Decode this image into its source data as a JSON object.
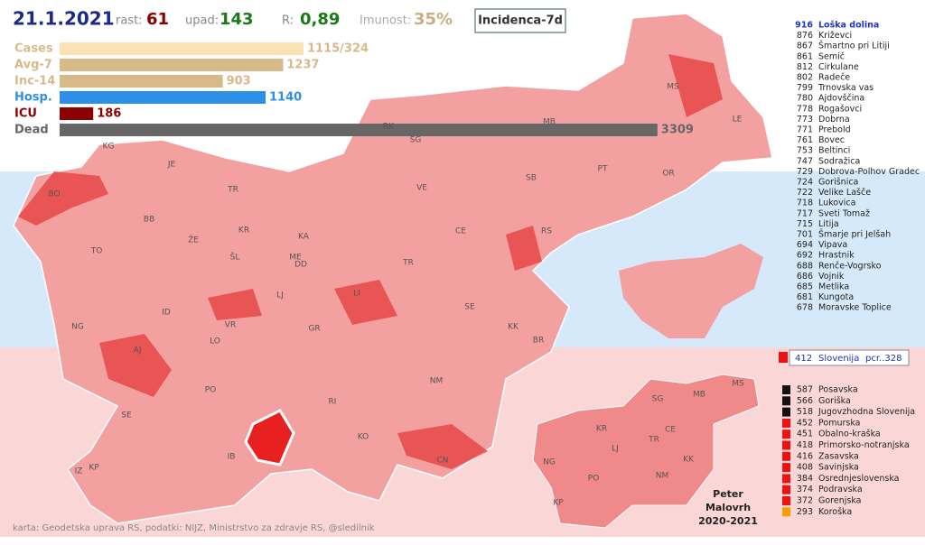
{
  "header": {
    "date": "21.1.2021",
    "rast_label": "rast:",
    "rast": "61",
    "upad_label": "upad:",
    "upad": "143",
    "r_label": "R:",
    "r": "0,89",
    "imunost_label": "Imunost:",
    "imunost": "35%",
    "button": "Incidenca-7d"
  },
  "stats": [
    {
      "label": "Cases",
      "value": "1115/324",
      "color": "#f9e3b4"
    },
    {
      "label": "Avg-7",
      "value": 1237,
      "color": "#d8b98a"
    },
    {
      "label": "Inc-14",
      "value": 903,
      "color": "#d8b98a"
    },
    {
      "label": "Hosp.",
      "value": 1140,
      "color": "#2e8fe8"
    },
    {
      "label": "ICU",
      "value": 186,
      "color": "#8b0000"
    },
    {
      "label": "Dead",
      "value": 3309,
      "color": "#666666"
    }
  ],
  "top_list": [
    [
      "916",
      "Loška dolina"
    ],
    [
      "876",
      "Križevci"
    ],
    [
      "867",
      "Šmartno pri Litiji"
    ],
    [
      "861",
      "Semič"
    ],
    [
      "812",
      "Cirkulane"
    ],
    [
      "802",
      "Radeče"
    ],
    [
      "799",
      "Trnovska vas"
    ],
    [
      "780",
      "Ajdovščina"
    ],
    [
      "778",
      "Rogašovci"
    ],
    [
      "773",
      "Dobrna"
    ],
    [
      "771",
      "Prebold"
    ],
    [
      "761",
      "Bovec"
    ],
    [
      "753",
      "Beltinci"
    ],
    [
      "747",
      "Sodražica"
    ],
    [
      "729",
      "Dobrova-Polhov Gradec"
    ],
    [
      "724",
      "Gorišnica"
    ],
    [
      "722",
      "Velike Lašče"
    ],
    [
      "718",
      "Lukovica"
    ],
    [
      "717",
      "Sveti Tomaž"
    ],
    [
      "715",
      "Litija"
    ],
    [
      "701",
      "Šmarje pri Jelšah"
    ],
    [
      "694",
      "Vipava"
    ],
    [
      "692",
      "Hrastnik"
    ],
    [
      "688",
      "Renče-Vogrsko"
    ],
    [
      "686",
      "Vojnik"
    ],
    [
      "685",
      "Metlika"
    ],
    [
      "681",
      "Kungota"
    ],
    [
      "678",
      "Moravske Toplice"
    ]
  ],
  "slovenia": {
    "value": "412",
    "name": "Slovenija",
    "pcr": "pcr..328"
  },
  "regions": [
    {
      "value": "587",
      "name": "Posavska",
      "color": "#111111"
    },
    {
      "value": "566",
      "name": "Goriška",
      "color": "#111111"
    },
    {
      "value": "518",
      "name": "Jugovzhodna Slovenija",
      "color": "#111111"
    },
    {
      "value": "452",
      "name": "Pomurska",
      "color": "#ee1111"
    },
    {
      "value": "451",
      "name": "Obalno-kraška",
      "color": "#ee1111"
    },
    {
      "value": "418",
      "name": "Primorsko-notranjska",
      "color": "#ee1111"
    },
    {
      "value": "416",
      "name": "Zasavska",
      "color": "#ee1111"
    },
    {
      "value": "408",
      "name": "Savinjska",
      "color": "#ee1111"
    },
    {
      "value": "384",
      "name": "Osrednjeslovenska",
      "color": "#ee1111"
    },
    {
      "value": "374",
      "name": "Podravska",
      "color": "#ee1111"
    },
    {
      "value": "372",
      "name": "Gorenjska",
      "color": "#ee1111"
    },
    {
      "value": "293",
      "name": "Koroška",
      "color": "#f5a000"
    }
  ],
  "map_labels": [
    "KG",
    "JE",
    "BO",
    "TR",
    "BB",
    "ŽE",
    "KR",
    "KA",
    "TO",
    "ŠL",
    "ME",
    "DD",
    "LJ",
    "TR",
    "ID",
    "VR",
    "GR",
    "NG",
    "AJ",
    "LO",
    "PO",
    "RI",
    "SE",
    "KO",
    "NM",
    "IB",
    "IZ",
    "KP",
    "CN",
    "LI",
    "SE",
    "KK",
    "BR",
    "RK",
    "SG",
    "MB",
    "VE",
    "SB",
    "CE",
    "RS",
    "PT",
    "MS",
    "LE",
    "OR"
  ],
  "small_map_labels": [
    "SG",
    "MB",
    "MS",
    "KR",
    "CE",
    "LJ",
    "TR",
    "NG",
    "PO",
    "NM",
    "KK",
    "KP"
  ],
  "author": [
    "Peter",
    "Malovrh",
    "2020-2021"
  ],
  "footer": "karta: Geodetska uprava RS, podatki: NIJZ, Ministrstvo za zdravje RS, @sledilnik"
}
